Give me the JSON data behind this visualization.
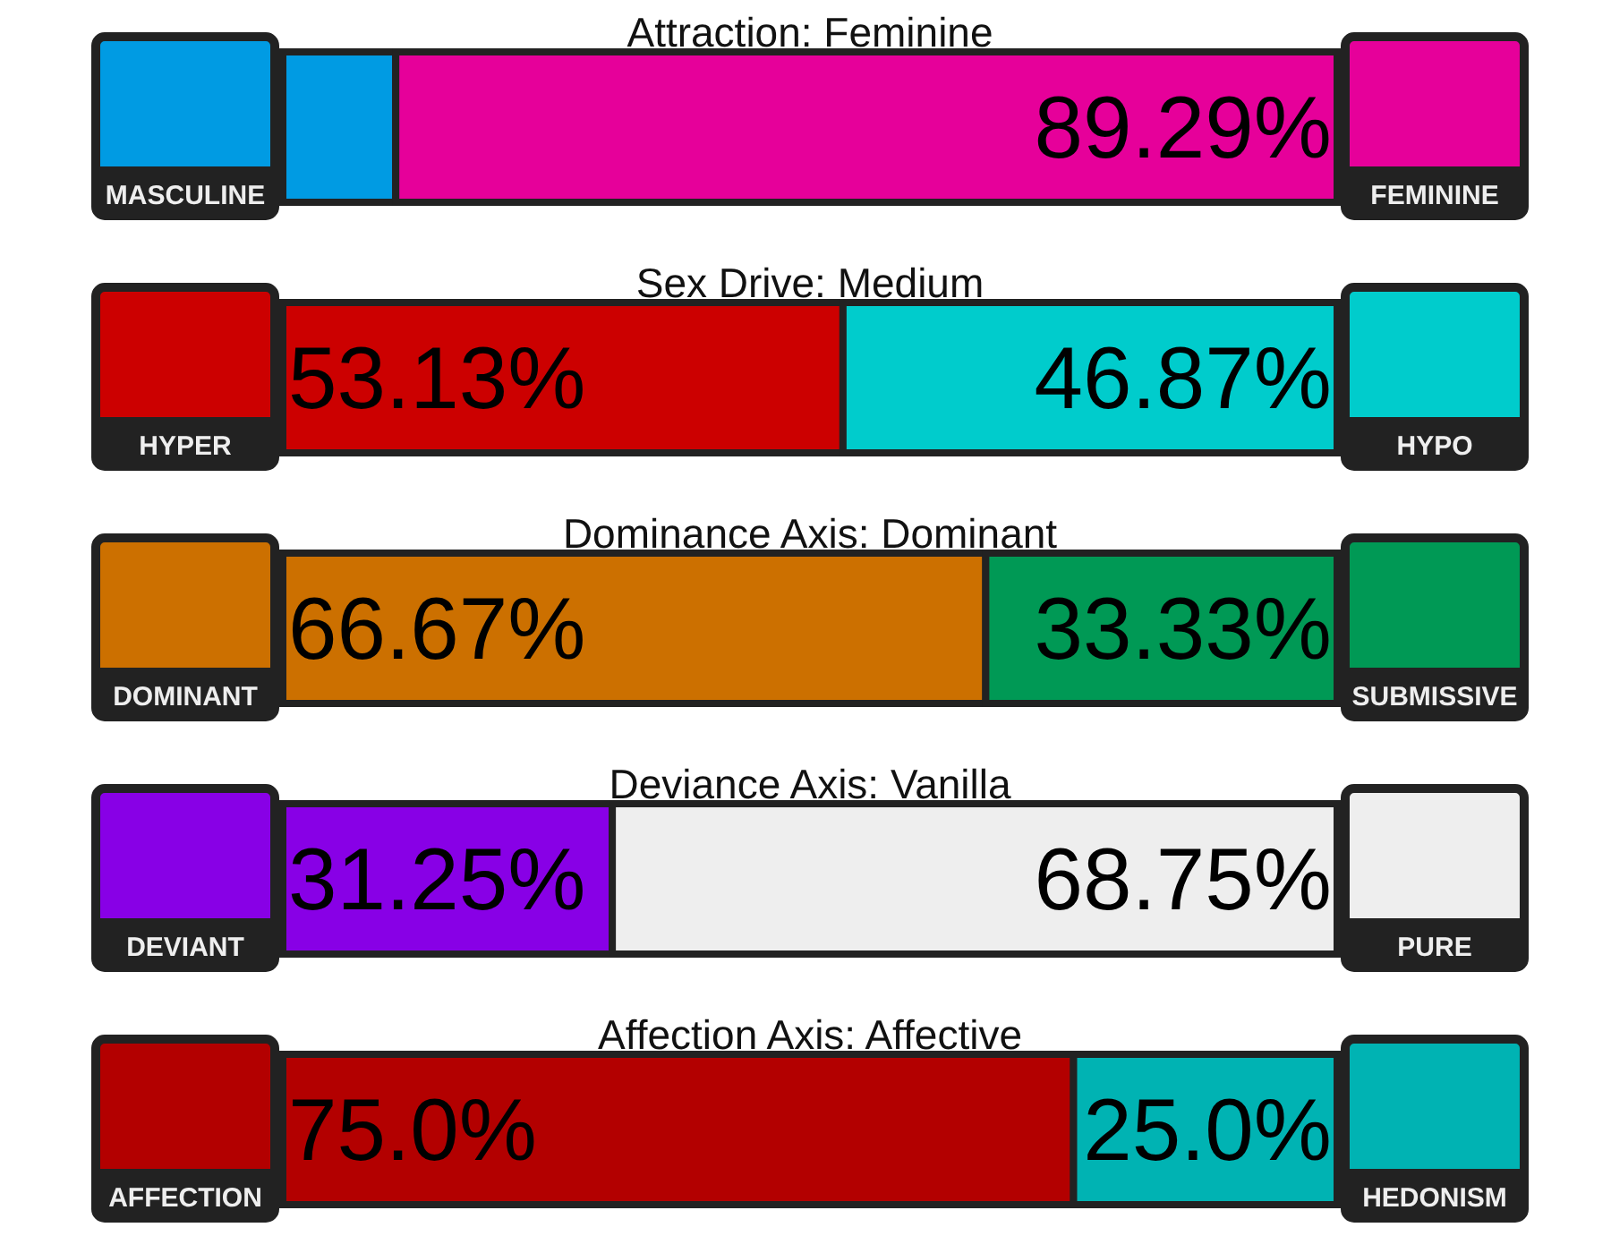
{
  "chart_data": [
    {
      "type": "bar",
      "title": "Attraction: Feminine",
      "orientation": "horizontal",
      "stacked": true,
      "categories": [
        null
      ],
      "xlim": [
        0,
        100
      ],
      "tick_labels": false,
      "series": [
        {
          "name": "MASCULINE",
          "color": "#009be3",
          "values": [
            10.71
          ],
          "value_labels": [
            null
          ]
        },
        {
          "name": "FEMININE",
          "color": "#e6009a",
          "values": [
            89.29
          ],
          "value_labels": [
            "89.29%"
          ]
        }
      ]
    },
    {
      "type": "bar",
      "title": "Sex Drive: Medium",
      "orientation": "horizontal",
      "stacked": true,
      "categories": [
        null
      ],
      "xlim": [
        0,
        100
      ],
      "tick_labels": false,
      "series": [
        {
          "name": "HYPER",
          "color": "#cc0000",
          "values": [
            53.13
          ],
          "value_labels": [
            "53.13%"
          ]
        },
        {
          "name": "HYPO",
          "color": "#00cccc",
          "values": [
            46.87
          ],
          "value_labels": [
            "46.87%"
          ]
        }
      ]
    },
    {
      "type": "bar",
      "title": "Dominance Axis: Dominant",
      "orientation": "horizontal",
      "stacked": true,
      "categories": [
        null
      ],
      "xlim": [
        0,
        100
      ],
      "tick_labels": false,
      "series": [
        {
          "name": "DOMINANT",
          "color": "#cc7000",
          "values": [
            66.67
          ],
          "value_labels": [
            "66.67%"
          ]
        },
        {
          "name": "SUBMISSIVE",
          "color": "#009955",
          "values": [
            33.33
          ],
          "value_labels": [
            "33.33%"
          ]
        }
      ]
    },
    {
      "type": "bar",
      "title": "Deviance Axis: Vanilla",
      "orientation": "horizontal",
      "stacked": true,
      "categories": [
        null
      ],
      "xlim": [
        0,
        100
      ],
      "tick_labels": false,
      "series": [
        {
          "name": "DEVIANT",
          "color": "#8800e6",
          "values": [
            31.25
          ],
          "value_labels": [
            "31.25%"
          ]
        },
        {
          "name": "PURE",
          "color": "#eeeeee",
          "values": [
            68.75
          ],
          "value_labels": [
            "68.75%"
          ]
        }
      ]
    },
    {
      "type": "bar",
      "title": "Affection Axis: Affective",
      "orientation": "horizontal",
      "stacked": true,
      "categories": [
        null
      ],
      "xlim": [
        0,
        100
      ],
      "tick_labels": false,
      "series": [
        {
          "name": "AFFECTION",
          "color": "#b30000",
          "values": [
            75.0
          ],
          "value_labels": [
            "75.0%"
          ]
        },
        {
          "name": "HEDONISM",
          "color": "#00b3b3",
          "values": [
            25.0
          ],
          "value_labels": [
            "25.0%"
          ]
        }
      ]
    }
  ]
}
